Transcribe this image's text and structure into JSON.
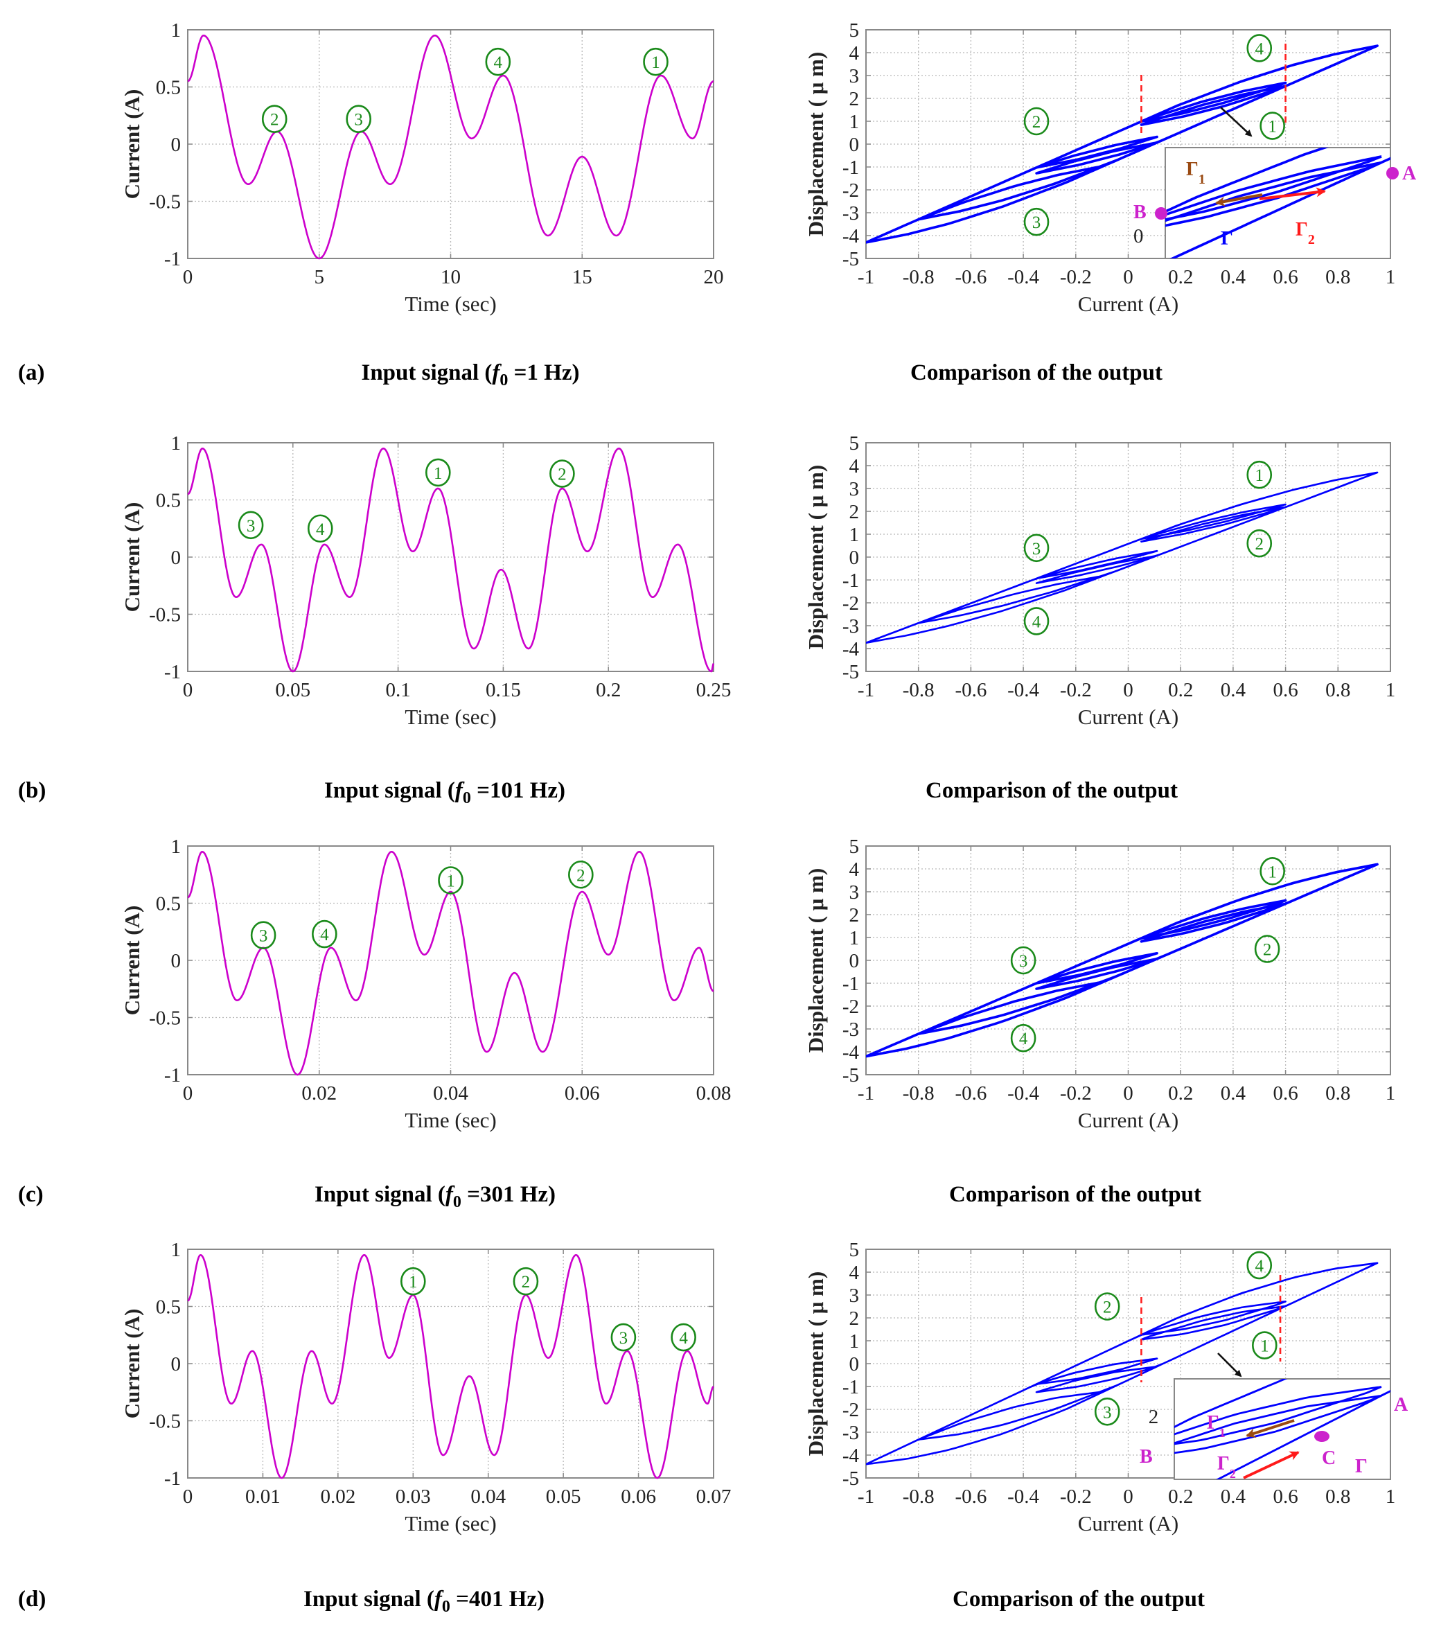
{
  "colors": {
    "signal": "#cc00cc",
    "hysteresis": "#0000ff",
    "marker_circle": "#1a8a1a",
    "dashed_line": "#ff2020",
    "point": "#cc22cc",
    "arrow_brown": "#9a4a12",
    "arrow_red": "#ff1a1a",
    "arrow_black": "#111111",
    "grid": "#b8b8b8",
    "axis": "#888888"
  },
  "panels": [
    {
      "letter": "(a)",
      "caption_left_prefix": "Input signal (",
      "caption_left_f": "f",
      "caption_left_sub": "0",
      "caption_left_suffix": " =1 Hz)",
      "caption_right": "Comparison of the output"
    },
    {
      "letter": "(b)",
      "caption_left_prefix": "Input signal (",
      "caption_left_f": "f",
      "caption_left_sub": "0",
      "caption_left_suffix": " =101 Hz)",
      "caption_right": "Comparison of the output"
    },
    {
      "letter": "(c)",
      "caption_left_prefix": "Input signal (",
      "caption_left_f": "f",
      "caption_left_sub": "0",
      "caption_left_suffix": " =301 Hz)",
      "caption_right": "Comparison of the output"
    },
    {
      "letter": "(d)",
      "caption_left_prefix": "Input signal (",
      "caption_left_f": "f",
      "caption_left_sub": "0",
      "caption_left_suffix": " =401 Hz)",
      "caption_right": "Comparison of the output"
    }
  ],
  "chart_data": [
    {
      "id": "a-input",
      "type": "line",
      "xlabel": "Time  (sec)",
      "ylabel": "Current (A)",
      "xlim": [
        0,
        20
      ],
      "ylim": [
        -1,
        1
      ],
      "xticks": [
        0,
        5,
        10,
        15,
        20
      ],
      "xtick_labels": [
        "0",
        "5",
        "10",
        "15",
        "20"
      ],
      "yticks": [
        1,
        0.5,
        0,
        -0.5,
        -1
      ],
      "ytick_labels": [
        "1",
        "0.5",
        "0",
        "-0.5",
        "-1"
      ],
      "grid": true,
      "series": [
        {
          "name": "input current",
          "extrema": [
            [
              0,
              0.55
            ],
            [
              0.6,
              0.95
            ],
            [
              2.3,
              -0.35
            ],
            [
              3.4,
              0.11
            ],
            [
              5.0,
              -1.0
            ],
            [
              6.6,
              0.11
            ],
            [
              7.7,
              -0.35
            ],
            [
              9.4,
              0.95
            ],
            [
              10.8,
              0.05
            ],
            [
              12.0,
              0.6
            ],
            [
              13.7,
              -0.8
            ],
            [
              15.0,
              -0.11
            ],
            [
              16.3,
              -0.8
            ],
            [
              18.0,
              0.6
            ],
            [
              19.2,
              0.05
            ],
            [
              20,
              0.55
            ]
          ]
        }
      ],
      "annotations": [
        {
          "text": "2",
          "x": 3.3,
          "y": 0.22
        },
        {
          "text": "3",
          "x": 6.5,
          "y": 0.22
        },
        {
          "text": "4",
          "x": 11.8,
          "y": 0.72
        },
        {
          "text": "1",
          "x": 17.8,
          "y": 0.72
        }
      ]
    },
    {
      "id": "a-output",
      "type": "line",
      "xlabel": "Current (A)",
      "ylabel": "Displacement ( μ m)",
      "xlim": [
        -1,
        1
      ],
      "ylim": [
        -5,
        5
      ],
      "xticks": [
        -1,
        -0.8,
        -0.6,
        -0.4,
        -0.2,
        0,
        0.2,
        0.4,
        0.6,
        0.8,
        1
      ],
      "xtick_labels": [
        "-1",
        "-0.8",
        "-0.6",
        "-0.4",
        "-0.2",
        "0",
        "0.2",
        "0.4",
        "0.6",
        "0.8",
        "1"
      ],
      "yticks": [
        5,
        4,
        3,
        2,
        1,
        0,
        -1,
        -2,
        -3,
        -4,
        -5
      ],
      "ytick_labels": [
        "5",
        "4",
        "3",
        "2",
        "1",
        "0",
        "-1",
        "-2",
        "-3",
        "-4",
        "-5"
      ],
      "grid": true,
      "series": [
        {
          "name": "displacement vs current",
          "peak": [
            0.95,
            4.3
          ],
          "valley": [
            -1,
            -4.3
          ],
          "loop_halfwidth": 0.55
        }
      ],
      "annotations": [
        {
          "text": "4",
          "x": 0.5,
          "y": 4.2
        },
        {
          "text": "2",
          "x": -0.35,
          "y": 1.0
        },
        {
          "text": "1",
          "x": 0.55,
          "y": 0.8
        },
        {
          "text": "3",
          "x": -0.35,
          "y": -3.4
        }
      ],
      "dashed_lines_x": [
        0.05,
        0.6
      ],
      "inset": {
        "labels": {
          "gamma1": "Γ",
          "gamma1_sub": "1",
          "gamma2": "Γ",
          "gamma2_sub": "2",
          "gamma": "Γ",
          "A": "A",
          "B": "B",
          "zero": "0"
        }
      }
    },
    {
      "id": "b-input",
      "type": "line",
      "xlabel": "Time  (sec)",
      "ylabel": "Current (A)",
      "xlim": [
        0,
        0.25
      ],
      "ylim": [
        -1,
        1
      ],
      "xticks": [
        0,
        0.05,
        0.1,
        0.15,
        0.2,
        0.25
      ],
      "xtick_labels": [
        "0",
        "0.05",
        "0.1",
        "0.15",
        "0.2",
        "0.25"
      ],
      "yticks": [
        1,
        0.5,
        0,
        -0.5,
        -1
      ],
      "ytick_labels": [
        "1",
        "0.5",
        "0",
        "-0.5",
        "-1"
      ],
      "grid": true,
      "series": [
        {
          "name": "input current",
          "extrema": [
            [
              0,
              0.55
            ],
            [
              0.007,
              0.95
            ],
            [
              0.023,
              -0.35
            ],
            [
              0.035,
              0.11
            ],
            [
              0.05,
              -1.0
            ],
            [
              0.065,
              0.11
            ],
            [
              0.077,
              -0.35
            ],
            [
              0.093,
              0.95
            ],
            [
              0.107,
              0.05
            ],
            [
              0.119,
              0.6
            ],
            [
              0.136,
              -0.8
            ],
            [
              0.149,
              -0.11
            ],
            [
              0.162,
              -0.8
            ],
            [
              0.178,
              0.6
            ],
            [
              0.19,
              0.05
            ],
            [
              0.205,
              0.95
            ],
            [
              0.221,
              -0.35
            ],
            [
              0.233,
              0.11
            ],
            [
              0.249,
              -1.0
            ],
            [
              0.25,
              -0.93
            ]
          ]
        }
      ],
      "annotations": [
        {
          "text": "3",
          "x": 0.03,
          "y": 0.28
        },
        {
          "text": "4",
          "x": 0.063,
          "y": 0.25
        },
        {
          "text": "1",
          "x": 0.119,
          "y": 0.74
        },
        {
          "text": "2",
          "x": 0.178,
          "y": 0.73
        }
      ]
    },
    {
      "id": "b-output",
      "type": "line",
      "xlabel": "Current (A)",
      "ylabel": "Displacement ( μ m)",
      "xlim": [
        -1,
        1
      ],
      "ylim": [
        -5,
        5
      ],
      "xticks": [
        -1,
        -0.8,
        -0.6,
        -0.4,
        -0.2,
        0,
        0.2,
        0.4,
        0.6,
        0.8,
        1
      ],
      "xtick_labels": [
        "-1",
        "-0.8",
        "-0.6",
        "-0.4",
        "-0.2",
        "0",
        "0.2",
        "0.4",
        "0.6",
        "0.8",
        "1"
      ],
      "yticks": [
        5,
        4,
        3,
        2,
        1,
        0,
        -1,
        -2,
        -3,
        -4,
        -5
      ],
      "ytick_labels": [
        "5",
        "4",
        "3",
        "2",
        "1",
        "0",
        "-1",
        "-2",
        "-3",
        "-4",
        "-5"
      ],
      "grid": true,
      "series": [
        {
          "name": "displacement vs current",
          "peak": [
            0.94,
            3.7
          ],
          "valley": [
            -1,
            -3.75
          ],
          "loop_halfwidth": 0.45
        }
      ],
      "annotations": [
        {
          "text": "1",
          "x": 0.5,
          "y": 3.6
        },
        {
          "text": "2",
          "x": 0.5,
          "y": 0.6
        },
        {
          "text": "3",
          "x": -0.35,
          "y": 0.4
        },
        {
          "text": "4",
          "x": -0.35,
          "y": -2.8
        }
      ]
    },
    {
      "id": "c-input",
      "type": "line",
      "xlabel": "Time  (sec)",
      "ylabel": "Current (A)",
      "xlim": [
        0,
        0.08
      ],
      "ylim": [
        -1,
        1
      ],
      "xticks": [
        0,
        0.02,
        0.04,
        0.06,
        0.08
      ],
      "xtick_labels": [
        "0",
        "0.02",
        "0.04",
        "0.06",
        "0.08"
      ],
      "yticks": [
        1,
        0.5,
        0,
        -0.5,
        -1
      ],
      "ytick_labels": [
        "1",
        "0.5",
        "0",
        "-0.5",
        "-1"
      ],
      "grid": true,
      "series": [
        {
          "name": "input current",
          "extrema": [
            [
              0,
              0.55
            ],
            [
              0.0022,
              0.95
            ],
            [
              0.0075,
              -0.35
            ],
            [
              0.0115,
              0.11
            ],
            [
              0.0167,
              -1.0
            ],
            [
              0.0218,
              0.11
            ],
            [
              0.0256,
              -0.35
            ],
            [
              0.031,
              0.95
            ],
            [
              0.036,
              0.05
            ],
            [
              0.04,
              0.6
            ],
            [
              0.0455,
              -0.8
            ],
            [
              0.0497,
              -0.11
            ],
            [
              0.054,
              -0.8
            ],
            [
              0.06,
              0.6
            ],
            [
              0.064,
              0.05
            ],
            [
              0.0687,
              0.95
            ],
            [
              0.074,
              -0.35
            ],
            [
              0.0778,
              0.11
            ],
            [
              0.08,
              -0.27
            ]
          ]
        }
      ],
      "annotations": [
        {
          "text": "3",
          "x": 0.0115,
          "y": 0.22
        },
        {
          "text": "4",
          "x": 0.0208,
          "y": 0.23
        },
        {
          "text": "1",
          "x": 0.04,
          "y": 0.7
        },
        {
          "text": "2",
          "x": 0.0598,
          "y": 0.75
        }
      ]
    },
    {
      "id": "c-output",
      "type": "line",
      "xlabel": "Current (A)",
      "ylabel": "Displacement ( μ m)",
      "xlim": [
        -1,
        1
      ],
      "ylim": [
        -5,
        5
      ],
      "xticks": [
        -1,
        -0.8,
        -0.6,
        -0.4,
        -0.2,
        0,
        0.2,
        0.4,
        0.6,
        0.8,
        1
      ],
      "xtick_labels": [
        "-1",
        "-0.8",
        "-0.6",
        "-0.4",
        "-0.2",
        "0",
        "0.2",
        "0.4",
        "0.6",
        "0.8",
        "1"
      ],
      "yticks": [
        5,
        4,
        3,
        2,
        1,
        0,
        -1,
        -2,
        -3,
        -4,
        -5
      ],
      "ytick_labels": [
        "5",
        "4",
        "3",
        "2",
        "1",
        "0",
        "-1",
        "-2",
        "-3",
        "-4",
        "-5"
      ],
      "grid": true,
      "series": [
        {
          "name": "displacement vs current",
          "peak": [
            0.93,
            4.2
          ],
          "valley": [
            -1,
            -4.2
          ],
          "loop_halfwidth": 0.55
        }
      ],
      "annotations": [
        {
          "text": "1",
          "x": 0.55,
          "y": 3.9
        },
        {
          "text": "2",
          "x": 0.53,
          "y": 0.5
        },
        {
          "text": "3",
          "x": -0.4,
          "y": 0.0
        },
        {
          "text": "4",
          "x": -0.4,
          "y": -3.4
        }
      ]
    },
    {
      "id": "d-input",
      "type": "line",
      "xlabel": "Time  (sec)",
      "ylabel": "Current (A)",
      "xlim": [
        0,
        0.07
      ],
      "ylim": [
        -1,
        1
      ],
      "xticks": [
        0,
        0.01,
        0.02,
        0.03,
        0.04,
        0.05,
        0.06,
        0.07
      ],
      "xtick_labels": [
        "0",
        "0.01",
        "0.02",
        "0.03",
        "0.04",
        "0.05",
        "0.06",
        "0.07"
      ],
      "yticks": [
        1,
        0.5,
        0,
        -0.5,
        -1
      ],
      "ytick_labels": [
        "1",
        "0.5",
        "0",
        "-0.5",
        "-1"
      ],
      "grid": true,
      "series": [
        {
          "name": "input current",
          "extrema": [
            [
              0,
              0.55
            ],
            [
              0.0017,
              0.95
            ],
            [
              0.0058,
              -0.35
            ],
            [
              0.0086,
              0.11
            ],
            [
              0.0125,
              -1.0
            ],
            [
              0.0165,
              0.11
            ],
            [
              0.0192,
              -0.35
            ],
            [
              0.0235,
              0.95
            ],
            [
              0.0268,
              0.05
            ],
            [
              0.03,
              0.6
            ],
            [
              0.034,
              -0.8
            ],
            [
              0.0375,
              -0.11
            ],
            [
              0.0408,
              -0.8
            ],
            [
              0.045,
              0.6
            ],
            [
              0.048,
              0.05
            ],
            [
              0.0517,
              0.95
            ],
            [
              0.0557,
              -0.35
            ],
            [
              0.0585,
              0.11
            ],
            [
              0.0625,
              -1.0
            ],
            [
              0.0665,
              0.11
            ],
            [
              0.0692,
              -0.35
            ],
            [
              0.07,
              -0.2
            ]
          ]
        }
      ],
      "annotations": [
        {
          "text": "1",
          "x": 0.03,
          "y": 0.72
        },
        {
          "text": "2",
          "x": 0.045,
          "y": 0.72
        },
        {
          "text": "3",
          "x": 0.058,
          "y": 0.23
        },
        {
          "text": "4",
          "x": 0.066,
          "y": 0.23
        }
      ]
    },
    {
      "id": "d-output",
      "type": "line",
      "xlabel": "Current (A)",
      "ylabel": "Displacement ( μ m)",
      "xlim": [
        -1,
        1
      ],
      "ylim": [
        -5,
        5
      ],
      "xticks": [
        -1,
        -0.8,
        -0.6,
        -0.4,
        -0.2,
        0,
        0.2,
        0.4,
        0.6,
        0.8,
        1
      ],
      "xtick_labels": [
        "-1",
        "-0.8",
        "-0.6",
        "-0.4",
        "-0.2",
        "0",
        "0.2",
        "0.4",
        "0.6",
        "0.8",
        "1"
      ],
      "yticks": [
        5,
        4,
        3,
        2,
        1,
        0,
        -1,
        -2,
        -3,
        -4,
        -5
      ],
      "ytick_labels": [
        "5",
        "4",
        "3",
        "2",
        "1",
        "0",
        "-1",
        "-2",
        "-3",
        "-4",
        "-5"
      ],
      "grid": true,
      "series": [
        {
          "name": "displacement vs current",
          "peak": [
            0.93,
            4.4
          ],
          "valley": [
            -1,
            -4.4
          ],
          "loop_halfwidth": 0.75
        }
      ],
      "annotations": [
        {
          "text": "4",
          "x": 0.5,
          "y": 4.3
        },
        {
          "text": "2",
          "x": -0.08,
          "y": 2.5
        },
        {
          "text": "1",
          "x": 0.52,
          "y": 0.8
        },
        {
          "text": "3",
          "x": -0.08,
          "y": -2.1
        }
      ],
      "dashed_lines_x": [
        0.05,
        0.58
      ],
      "inset": {
        "labels": {
          "gamma1": "Γ",
          "gamma1_sub": "1",
          "gamma2": "Γ",
          "gamma2_sub": "2",
          "gamma": "Γ",
          "A": "A",
          "B": "B",
          "C": "C",
          "two": "2"
        }
      }
    }
  ]
}
